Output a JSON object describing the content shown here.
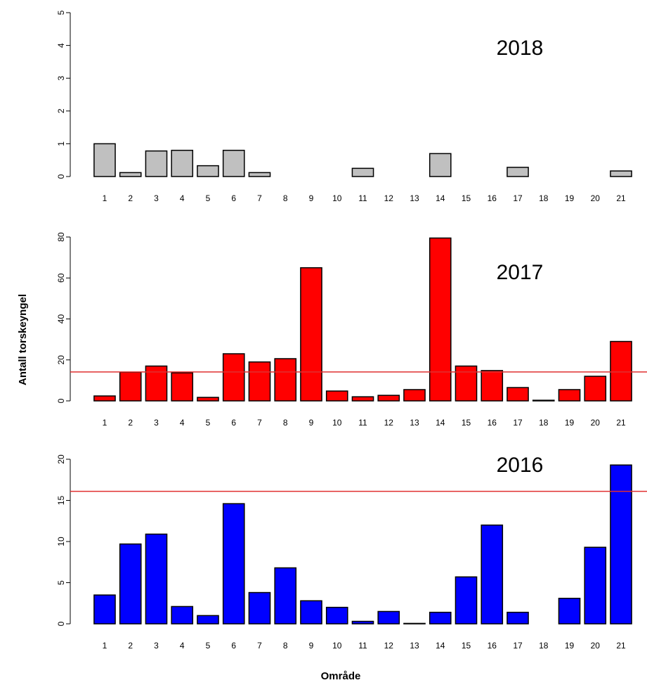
{
  "chart_data": [
    {
      "type": "bar",
      "title": "2018",
      "categories": [
        "1",
        "2",
        "3",
        "4",
        "5",
        "6",
        "7",
        "8",
        "9",
        "10",
        "11",
        "12",
        "13",
        "14",
        "15",
        "16",
        "17",
        "18",
        "19",
        "20",
        "21"
      ],
      "values": [
        1.0,
        0.12,
        0.78,
        0.8,
        0.33,
        0.8,
        0.12,
        0,
        0,
        0,
        0.25,
        0,
        0,
        0.7,
        0,
        0,
        0.28,
        0,
        0,
        0,
        0.17
      ],
      "color": "#c0c0c0",
      "ylim": [
        0,
        5
      ],
      "yticks": [
        0,
        1,
        2,
        3,
        4,
        5
      ]
    },
    {
      "type": "bar",
      "title": "2017",
      "ylabel": "Antall torskeyngel",
      "categories": [
        "1",
        "2",
        "3",
        "4",
        "5",
        "6",
        "7",
        "8",
        "9",
        "10",
        "11",
        "12",
        "13",
        "14",
        "15",
        "16",
        "17",
        "18",
        "19",
        "20",
        "21"
      ],
      "values": [
        2.4,
        14,
        17,
        13.7,
        1.7,
        23,
        19,
        20.6,
        65,
        4.8,
        2,
        2.7,
        5.5,
        79.5,
        17,
        14.8,
        6.5,
        0.3,
        5.5,
        12,
        29
      ],
      "color": "#ff0000",
      "ylim": [
        0,
        80
      ],
      "yticks": [
        0,
        20,
        40,
        60,
        80
      ],
      "reference_line": 14.1,
      "reference_color": "#e03030"
    },
    {
      "type": "bar",
      "title": "2016",
      "xlabel": "Område",
      "categories": [
        "1",
        "2",
        "3",
        "4",
        "5",
        "6",
        "7",
        "8",
        "9",
        "10",
        "11",
        "12",
        "13",
        "14",
        "15",
        "16",
        "17",
        "18",
        "19",
        "20",
        "21"
      ],
      "values": [
        3.5,
        9.7,
        10.9,
        2.1,
        1.0,
        14.6,
        3.8,
        6.8,
        2.8,
        2.0,
        0.3,
        1.5,
        0.05,
        1.4,
        5.7,
        12,
        1.4,
        0,
        3.1,
        9.3,
        19.3
      ],
      "color": "#0000ff",
      "ylim": [
        0,
        20
      ],
      "yticks": [
        0,
        5,
        10,
        15,
        20
      ],
      "reference_line": 16.1,
      "reference_color": "#e03030"
    }
  ]
}
